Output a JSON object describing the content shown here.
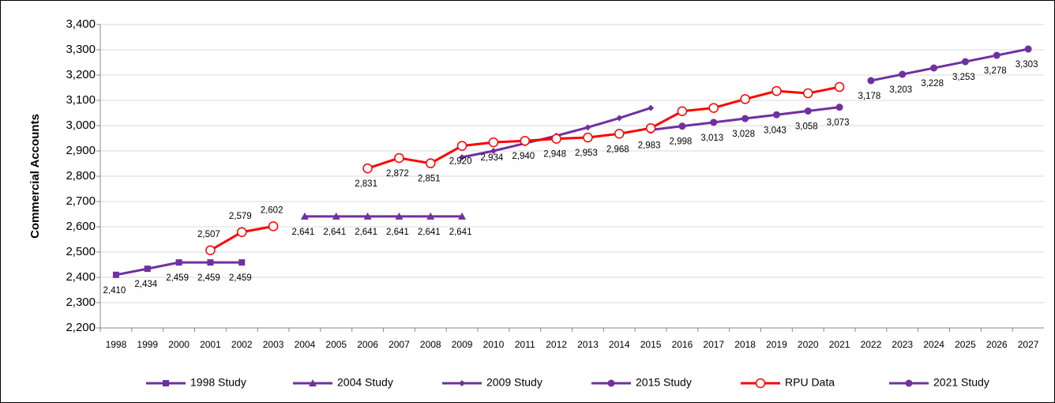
{
  "chart_data": {
    "type": "line",
    "y_label": "Commercial Accounts",
    "categories": [
      "1998",
      "1999",
      "2000",
      "2001",
      "2002",
      "2003",
      "2004",
      "2005",
      "2006",
      "2007",
      "2008",
      "2009",
      "2010",
      "2011",
      "2012",
      "2013",
      "2014",
      "2015",
      "2016",
      "2017",
      "2018",
      "2019",
      "2020",
      "2021",
      "2022",
      "2023",
      "2024",
      "2025",
      "2026",
      "2027"
    ],
    "ylim": [
      2200,
      3400
    ],
    "yticks": [
      {
        "value": 2200,
        "label": "2,200"
      },
      {
        "value": 2300,
        "label": "2,300"
      },
      {
        "value": 2400,
        "label": "2,400"
      },
      {
        "value": 2500,
        "label": "2,500"
      },
      {
        "value": 2600,
        "label": "2,600"
      },
      {
        "value": 2700,
        "label": "2,700"
      },
      {
        "value": 2800,
        "label": "2,800"
      },
      {
        "value": 2900,
        "label": "2,900"
      },
      {
        "value": 3000,
        "label": "3,000"
      },
      {
        "value": 3100,
        "label": "3,100"
      },
      {
        "value": 3200,
        "label": "3,200"
      },
      {
        "value": 3300,
        "label": "3,300"
      },
      {
        "value": 3400,
        "label": "3,400"
      }
    ],
    "grid": true,
    "legend": "bottom",
    "series": [
      {
        "name": "1998 Study",
        "color": "#7030a0",
        "marker": "square",
        "values": [
          2410,
          2434,
          2459,
          2459,
          2459,
          null,
          null,
          null,
          null,
          null,
          null,
          null,
          null,
          null,
          null,
          null,
          null,
          null,
          null,
          null,
          null,
          null,
          null,
          null,
          null,
          null,
          null,
          null,
          null,
          null
        ],
        "value_labels": [
          "2,410",
          "2,434",
          "2,459",
          "2,459",
          "2,459",
          null,
          null,
          null,
          null,
          null,
          null,
          null,
          null,
          null,
          null,
          null,
          null,
          null,
          null,
          null,
          null,
          null,
          null,
          null,
          null,
          null,
          null,
          null,
          null,
          null
        ]
      },
      {
        "name": "2004 Study",
        "color": "#7030a0",
        "marker": "triangle",
        "values": [
          null,
          null,
          null,
          null,
          null,
          null,
          2641,
          2641,
          2641,
          2641,
          2641,
          2641,
          null,
          null,
          null,
          null,
          null,
          null,
          null,
          null,
          null,
          null,
          null,
          null,
          null,
          null,
          null,
          null,
          null,
          null
        ],
        "value_labels": [
          null,
          null,
          null,
          null,
          null,
          null,
          "2,641",
          "2,641",
          "2,641",
          "2,641",
          "2,641",
          "2,641",
          null,
          null,
          null,
          null,
          null,
          null,
          null,
          null,
          null,
          null,
          null,
          null,
          null,
          null,
          null,
          null,
          null,
          null
        ]
      },
      {
        "name": "2009 Study",
        "color": "#7030a0",
        "marker": "diamond",
        "values": [
          null,
          null,
          null,
          null,
          null,
          null,
          null,
          null,
          null,
          null,
          null,
          2875,
          2900,
          2930,
          2960,
          2993,
          3030,
          3070,
          null,
          null,
          null,
          null,
          null,
          null,
          null,
          null,
          null,
          null,
          null,
          null
        ]
      },
      {
        "name": "2015 Study",
        "color": "#7030a0",
        "marker": "circle",
        "values": [
          null,
          null,
          null,
          null,
          null,
          null,
          null,
          null,
          null,
          null,
          null,
          null,
          null,
          null,
          null,
          null,
          null,
          2983,
          2998,
          3013,
          3028,
          3043,
          3058,
          3073,
          null,
          null,
          null,
          null,
          null,
          null
        ],
        "value_labels": [
          null,
          null,
          null,
          null,
          null,
          null,
          null,
          null,
          null,
          null,
          null,
          null,
          null,
          null,
          null,
          null,
          null,
          "2,983",
          "2,998",
          "3,013",
          "3,028",
          "3,043",
          "3,058",
          "3,073",
          null,
          null,
          null,
          null,
          null,
          null
        ]
      },
      {
        "name": "RPU Data",
        "color": "#ff0000",
        "marker": "open-circle",
        "values": [
          null,
          null,
          null,
          2507,
          2579,
          2602,
          null,
          null,
          2831,
          2872,
          2851,
          2920,
          2934,
          2940,
          2948,
          2953,
          2968,
          2990,
          3057,
          3070,
          3105,
          3137,
          3128,
          3153,
          null,
          null,
          null,
          null,
          null,
          null
        ],
        "value_labels": [
          null,
          null,
          null,
          "2,507",
          "2,579",
          "2,602",
          null,
          null,
          "2,831",
          "2,872",
          "2,851",
          "2,920",
          "2,934",
          "2,940",
          "2,948",
          "2,953",
          "2,968",
          null,
          null,
          null,
          null,
          null,
          null,
          null,
          null,
          null,
          null,
          null,
          null,
          null
        ]
      },
      {
        "name": "2021 Study",
        "color": "#7030a0",
        "marker": "circle",
        "values": [
          null,
          null,
          null,
          null,
          null,
          null,
          null,
          null,
          null,
          null,
          null,
          null,
          null,
          null,
          null,
          null,
          null,
          null,
          null,
          null,
          null,
          null,
          null,
          null,
          3178,
          3203,
          3228,
          3253,
          3278,
          3303
        ],
        "value_labels": [
          null,
          null,
          null,
          null,
          null,
          null,
          null,
          null,
          null,
          null,
          null,
          null,
          null,
          null,
          null,
          null,
          null,
          null,
          null,
          null,
          null,
          null,
          null,
          null,
          "3,178",
          "3,203",
          "3,228",
          "3,253",
          "3,278",
          "3,303"
        ]
      }
    ]
  }
}
